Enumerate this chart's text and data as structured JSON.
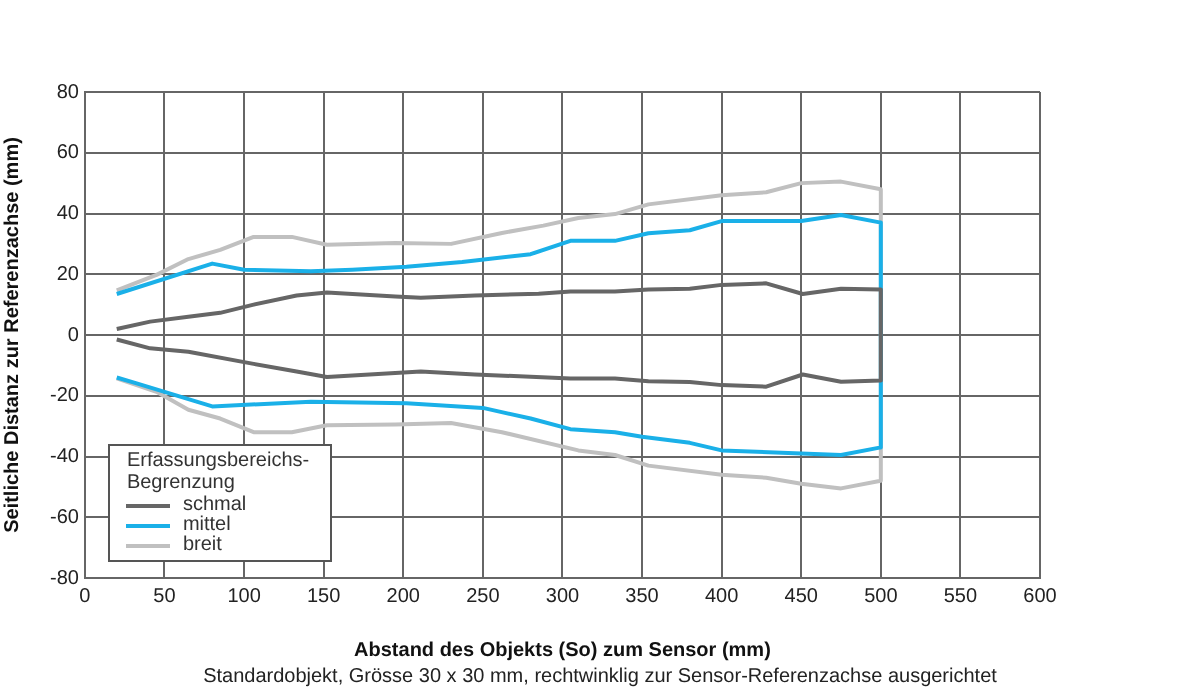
{
  "chart_data": {
    "type": "line",
    "xlabel": "Abstand des Objekts (So) zum Sensor (mm)",
    "ylabel": "Seitliche Distanz zur Referenzachse (mm)",
    "legend_title": "Erfassungsbereichs-Begrenzung",
    "annotations": [
      "Standardobjekt, Grösse 30 x 30 mm, rechtwinklig zur Sensor-Referenzachse ausgerichtet"
    ],
    "xlim": [
      0,
      600
    ],
    "xticks": [
      0,
      50,
      100,
      150,
      200,
      250,
      300,
      350,
      400,
      450,
      500,
      550,
      600
    ],
    "ylim": [
      -80,
      80
    ],
    "yticks": [
      -80,
      -60,
      -40,
      -20,
      0,
      20,
      40,
      60,
      80
    ],
    "grid": true,
    "legend": "bottom left",
    "marker": "none",
    "line_style": "solid",
    "series": [
      {
        "name": "schmal",
        "color": "#666666",
        "x": [
          20,
          41,
          65,
          85,
          106,
          133,
          152,
          195,
          211,
          245,
          285,
          305,
          333,
          354,
          380,
          400,
          428,
          451,
          475,
          500,
          500,
          475,
          451,
          428,
          400,
          380,
          354,
          333,
          305,
          245,
          211,
          152,
          133,
          106,
          65,
          41,
          20
        ],
        "values": [
          2,
          4.4,
          6,
          7.3,
          10,
          13,
          14,
          12.7,
          12.3,
          13,
          13.6,
          14.3,
          14.3,
          15,
          15.2,
          16.5,
          17,
          13.5,
          15.2,
          15,
          -15,
          -15.4,
          -13,
          -17,
          -16.5,
          -15.5,
          -15.2,
          -14.3,
          -14.3,
          -13,
          -12,
          -13.8,
          -12,
          -9.5,
          -5.5,
          -4.4,
          -1.5
        ]
      },
      {
        "name": "mittel",
        "color": "#1ab0e8",
        "x": [
          20,
          80,
          100,
          142,
          168,
          202,
          237,
          280,
          305,
          333,
          354,
          380,
          400,
          450,
          475,
          500,
          500,
          475,
          450,
          400,
          380,
          350,
          333,
          305,
          280,
          250,
          202,
          142,
          80,
          33,
          20
        ],
        "values": [
          13.5,
          23.5,
          21.5,
          21,
          21.5,
          22.5,
          24,
          26.6,
          31,
          31,
          33.5,
          34.5,
          37.5,
          37.5,
          39.5,
          37,
          -37,
          -39.5,
          -39,
          -38,
          -35.5,
          -33.5,
          -32,
          -31,
          -27.5,
          -24,
          -22.5,
          -22,
          -23.5,
          -16,
          -14
        ]
      },
      {
        "name": "breit",
        "color": "#c0c0c0",
        "x": [
          20,
          45,
          65,
          85,
          106,
          130,
          152,
          195,
          230,
          262,
          288,
          310,
          333,
          354,
          400,
          428,
          450,
          475,
          500,
          500,
          475,
          450,
          428,
          400,
          354,
          333,
          310,
          262,
          230,
          195,
          152,
          130,
          106,
          85,
          65,
          45,
          20
        ],
        "values": [
          14.7,
          19.8,
          25,
          28,
          32.3,
          32.3,
          29.7,
          30.3,
          30,
          33.6,
          36,
          38.5,
          39.8,
          43,
          46,
          47,
          50,
          50.5,
          48,
          -48,
          -50.5,
          -49,
          -47,
          -46,
          -43,
          -39.5,
          -38,
          -32,
          -29,
          -29.5,
          -29.7,
          -32,
          -32,
          -27.5,
          -24.6,
          -18.7,
          -14.3
        ]
      }
    ]
  }
}
